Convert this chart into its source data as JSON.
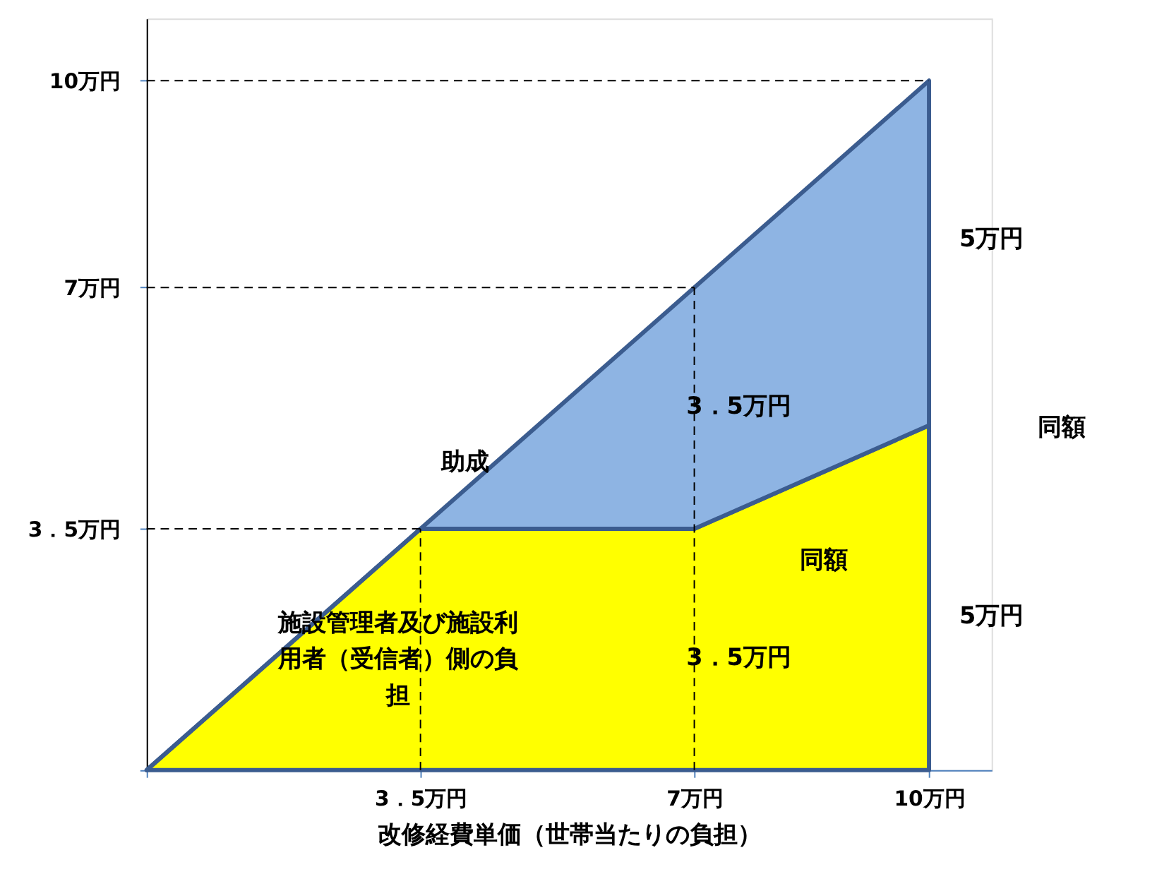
{
  "chart_data": {
    "type": "area",
    "stacked": true,
    "xlabel": "改修経費単価（世帯当たりの負担）",
    "x": [
      0,
      3.5,
      7,
      10
    ],
    "series": [
      {
        "color": "#ffff00",
        "values": [
          0,
          3.5,
          3.5,
          5
        ]
      },
      {
        "color": "#8eb4e3",
        "values": [
          0,
          0,
          3.5,
          5
        ]
      }
    ],
    "xlim": [
      0,
      10.8
    ],
    "ylim": [
      0,
      10.9
    ],
    "xticks": [
      {
        "value": 0,
        "label": null
      },
      {
        "value": 3.5,
        "label": "3．5万円"
      },
      {
        "value": 7,
        "label": "7万円"
      },
      {
        "value": 10,
        "label": "10万円"
      }
    ],
    "yticks": [
      {
        "value": 0,
        "label": null
      },
      {
        "value": 3.5,
        "label": "3．5万円"
      },
      {
        "value": 7,
        "label": "7万円"
      },
      {
        "value": 10,
        "label": "10万円"
      }
    ],
    "ref_lines": [
      {
        "axis": "y",
        "value": 3.5,
        "color": "#000000",
        "line_style": "dashed"
      },
      {
        "axis": "y",
        "value": 7,
        "color": "#000000",
        "line_style": "dashed"
      },
      {
        "axis": "y",
        "value": 10,
        "color": "#000000",
        "line_style": "dashed"
      },
      {
        "axis": "x",
        "value": 3.5,
        "color": "#000000",
        "line_style": "dashed"
      },
      {
        "axis": "x",
        "value": 7,
        "color": "#000000",
        "line_style": "dashed"
      }
    ],
    "annotations": [
      "助成",
      "施設管理者及び施設利用者（受信者）側の負担",
      "3．5万円",
      "3．5万円",
      "5万円",
      "5万円",
      "同額",
      "同額"
    ],
    "grid": false,
    "line_style": "solid"
  }
}
